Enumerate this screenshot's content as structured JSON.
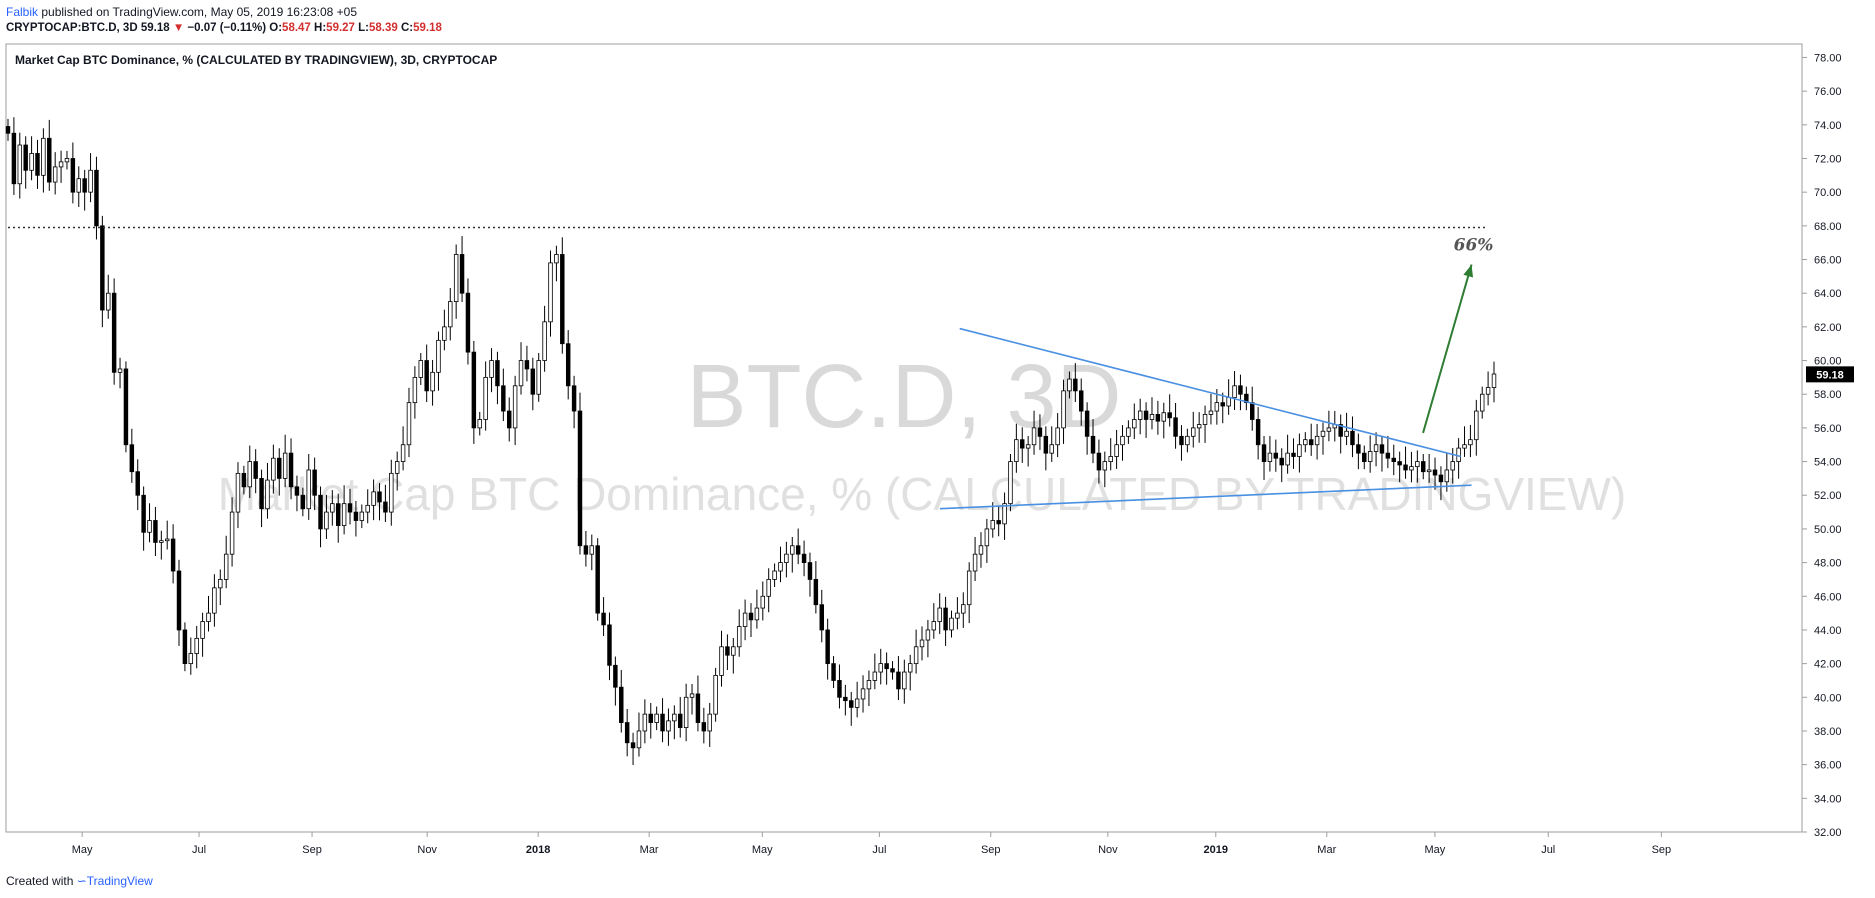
{
  "header": {
    "author": "Falbik",
    "published": "published on TradingView.com, May 05, 2019 16:23:08 +05",
    "symbol": "CRYPTOCAP:BTC.D, 3D",
    "last": "59.18",
    "arrow": "▼",
    "change": "−0.07 (−0.11%)",
    "o_label": "O:",
    "o_value": "58.47",
    "h_label": "H:",
    "h_value": "59.27",
    "l_label": "L:",
    "l_value": "58.39",
    "c_label": "C:",
    "c_value": "59.18"
  },
  "footer": {
    "created": "Created with",
    "brand": "TradingView"
  },
  "chart_data": {
    "type": "candlestick",
    "title": "Market Cap BTC Dominance, % (CALCULATED BY TRADINGVIEW), 3D, CRYPTOCAP",
    "watermark_main": "BTC.D, 3D",
    "watermark_sub": "Market Cap BTC Dominance, % (CALCULATED BY TRADINGVIEW)",
    "ylim": [
      32,
      78.8
    ],
    "y_ticks": [
      "78.00",
      "76.00",
      "74.00",
      "72.00",
      "70.00",
      "68.00",
      "66.00",
      "64.00",
      "62.00",
      "60.00",
      "58.00",
      "56.00",
      "54.00",
      "52.00",
      "50.00",
      "48.00",
      "46.00",
      "44.00",
      "42.00",
      "40.00",
      "38.00",
      "36.00",
      "34.00",
      "32.00"
    ],
    "x_ticks": [
      "May",
      "Jul",
      "Sep",
      "Nov",
      "2018",
      "Mar",
      "May",
      "Jul",
      "Sep",
      "Nov",
      "2019",
      "Mar",
      "May",
      "Jul",
      "Sep"
    ],
    "last_price": "59.18",
    "closes": [
      73.5,
      70.5,
      72.8,
      71.3,
      72.3,
      71.0,
      73.2,
      70.6,
      71.5,
      71.8,
      72.0,
      70.0,
      70.8,
      70.0,
      71.3,
      68.0,
      63.0,
      64.0,
      59.3,
      59.5,
      55.0,
      53.4,
      52.0,
      49.8,
      50.5,
      49.2,
      49.3,
      49.4,
      47.5,
      44.0,
      42.0,
      42.6,
      43.5,
      44.5,
      45.0,
      46.5,
      47.0,
      48.5,
      51.0,
      53.3,
      52.5,
      54.0,
      53.0,
      51.2,
      52.9,
      54.2,
      53.0,
      54.5,
      52.5,
      52.0,
      51.2,
      53.5,
      52.0,
      50.0,
      51.0,
      51.5,
      50.2,
      51.5,
      51.0,
      50.5,
      51.0,
      51.4,
      52.2,
      51.6,
      51.0,
      53.3,
      54.0,
      55.0,
      57.5,
      59.0,
      60.0,
      58.2,
      59.3,
      61.2,
      62.0,
      63.5,
      66.3,
      64.0,
      60.5,
      56.0,
      56.5,
      59.0,
      60.0,
      58.5,
      57.0,
      56.0,
      58.5,
      60.0,
      59.5,
      58.0,
      60.0,
      62.3,
      65.8,
      66.3,
      61.0,
      58.5,
      57.0,
      49.0,
      48.5,
      49.0,
      45.0,
      44.3,
      41.9,
      40.6,
      38.5,
      37.3,
      37.0,
      38.0,
      39.0,
      38.5,
      39.0,
      38.0,
      38.6,
      39.0,
      38.2,
      40.0,
      40.2,
      38.5,
      38.0,
      39.0,
      41.3,
      43.0,
      42.5,
      43.0,
      44.2,
      45.0,
      44.6,
      45.3,
      46.0,
      47.0,
      47.5,
      48.0,
      48.5,
      49.0,
      48.5,
      48.0,
      47.0,
      45.5,
      44.0,
      42.0,
      41.0,
      40.0,
      39.8,
      39.4,
      39.9,
      40.5,
      41.0,
      41.5,
      42.0,
      41.7,
      41.5,
      40.5,
      41.5,
      42.0,
      43.0,
      43.4,
      44.0,
      44.5,
      45.3,
      44.0,
      44.7,
      45.0,
      45.5,
      47.5,
      48.5,
      49.0,
      50.0,
      50.5,
      50.3,
      51.5,
      54.0,
      55.3,
      54.8,
      55.0,
      56.0,
      55.5,
      54.5,
      55.0,
      56.0,
      58.2,
      58.9,
      58.2,
      57.0,
      55.5,
      54.5,
      53.5,
      54.0,
      54.3,
      55.0,
      55.5,
      56.0,
      56.5,
      57.0,
      56.5,
      56.8,
      56.4,
      56.9,
      56.6,
      55.5,
      55.0,
      55.5,
      56.0,
      56.2,
      56.8,
      57.0,
      57.5,
      57.3,
      57.8,
      58.5,
      58.0,
      57.5,
      56.5,
      55.0,
      54.0,
      54.5,
      54.2,
      53.8,
      54.5,
      54.3,
      55.0,
      55.3,
      55.0,
      55.5,
      55.8,
      56.0,
      56.2,
      55.5,
      55.8,
      55.0,
      54.5,
      54.0,
      54.6,
      55.0,
      54.5,
      54.2,
      54.0,
      53.8,
      53.5,
      53.7,
      54.0,
      53.4,
      53.5,
      53.2,
      52.8,
      53.5,
      54.0,
      54.8,
      55.0,
      55.3,
      57.0,
      58.0,
      58.4,
      59.2
    ],
    "annotations": {
      "resistance_level": 67.9,
      "target_label": "66%",
      "upper_trendline": [
        [
          0.531,
          61.9
        ],
        [
          0.81,
          54.3
        ]
      ],
      "lower_trendline": [
        [
          0.52,
          51.2
        ],
        [
          0.816,
          52.6
        ]
      ],
      "projection": {
        "from": [
          0.789,
          55.7
        ],
        "to": [
          0.816,
          65.7
        ]
      }
    },
    "colors": {
      "up_body": "#ffffff",
      "down_body": "#000000",
      "wick": "#000000",
      "trendline": "#4a90e2",
      "projection": "#2e7d32",
      "dotted_line": "#333333",
      "price_label_bg": "#000000",
      "watermark": "#d9d9d9"
    }
  }
}
